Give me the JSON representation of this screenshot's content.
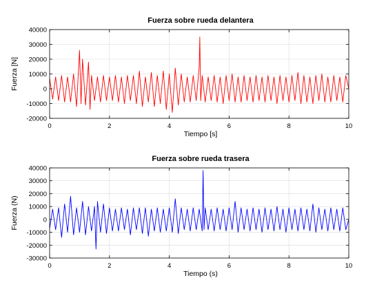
{
  "chart_data": [
    {
      "type": "line",
      "title": "Fuerza sobre rueda delantera",
      "xlabel": "Tiempo [s]",
      "ylabel": "Fuerza [N]",
      "xlim": [
        0,
        10
      ],
      "ylim": [
        -20000,
        40000
      ],
      "x_ticks": [
        0,
        2,
        4,
        6,
        8,
        10
      ],
      "y_ticks": [
        -20000,
        -10000,
        0,
        10000,
        20000,
        30000,
        40000
      ],
      "grid": true,
      "series": [
        {
          "color": "#ff0000",
          "x": [
            0,
            0.1,
            0.2,
            0.3,
            0.4,
            0.5,
            0.6,
            0.7,
            0.8,
            0.9,
            1.0,
            1.05,
            1.1,
            1.2,
            1.3,
            1.35,
            1.4,
            1.5,
            1.6,
            1.7,
            1.8,
            1.9,
            2.0,
            2.1,
            2.2,
            2.3,
            2.4,
            2.5,
            2.6,
            2.7,
            2.8,
            2.9,
            3.0,
            3.1,
            3.2,
            3.3,
            3.4,
            3.5,
            3.6,
            3.7,
            3.8,
            3.9,
            4.0,
            4.1,
            4.2,
            4.3,
            4.4,
            4.5,
            4.6,
            4.7,
            4.8,
            4.9,
            5.0,
            5.02,
            5.05,
            5.1,
            5.2,
            5.3,
            5.4,
            5.5,
            5.6,
            5.7,
            5.8,
            5.9,
            6.0,
            6.1,
            6.2,
            6.3,
            6.4,
            6.5,
            6.6,
            6.7,
            6.8,
            6.9,
            7.0,
            7.1,
            7.2,
            7.3,
            7.4,
            7.5,
            7.6,
            7.7,
            7.8,
            7.9,
            8.0,
            8.1,
            8.2,
            8.3,
            8.4,
            8.5,
            8.6,
            8.7,
            8.8,
            8.9,
            9.0,
            9.1,
            9.2,
            9.3,
            9.4,
            9.5,
            9.6,
            9.7,
            9.8,
            9.9,
            10.0
          ],
          "y": [
            7000,
            -7000,
            8000,
            -8000,
            9000,
            -9000,
            8000,
            -9000,
            10000,
            -12000,
            26000,
            -10000,
            20000,
            -11000,
            18000,
            -14000,
            9000,
            -8000,
            8000,
            -9000,
            9000,
            -8000,
            8000,
            -8000,
            9000,
            -9000,
            8000,
            -10000,
            9000,
            -8000,
            9000,
            -10000,
            12000,
            -12000,
            8000,
            -9000,
            11000,
            -12000,
            9000,
            -10000,
            12000,
            -14000,
            10000,
            -16000,
            14000,
            -11000,
            10000,
            -9000,
            8000,
            -9000,
            9000,
            -8000,
            15000,
            35000,
            -8000,
            9000,
            -9000,
            8000,
            -8000,
            9000,
            -9000,
            8000,
            -10000,
            9000,
            -8000,
            10000,
            -9000,
            8000,
            -9000,
            9000,
            -8000,
            8000,
            -9000,
            9000,
            -8000,
            8000,
            -9000,
            9000,
            -8000,
            8000,
            -10000,
            9000,
            -8000,
            8000,
            -9000,
            9000,
            -8000,
            11000,
            -10000,
            9000,
            -9000,
            8000,
            -10000,
            9000,
            -8000,
            10000,
            -9000,
            8000,
            -9000,
            9000,
            -8000,
            8000,
            -9000,
            9000,
            0
          ]
        }
      ]
    },
    {
      "type": "line",
      "title": "Fuerza sobre rueda trasera",
      "xlabel": "Tiempo (s)",
      "ylabel": "Fuerza (N)",
      "xlim": [
        0,
        10
      ],
      "ylim": [
        -30000,
        40000
      ],
      "x_ticks": [
        0,
        2,
        4,
        6,
        8,
        10
      ],
      "y_ticks": [
        -30000,
        -20000,
        -10000,
        0,
        10000,
        20000,
        30000,
        40000
      ],
      "grid": true,
      "series": [
        {
          "color": "#0000ff",
          "x": [
            0,
            0.1,
            0.2,
            0.3,
            0.4,
            0.5,
            0.6,
            0.7,
            0.8,
            0.9,
            1.0,
            1.1,
            1.2,
            1.3,
            1.4,
            1.5,
            1.55,
            1.6,
            1.7,
            1.8,
            1.9,
            2.0,
            2.1,
            2.2,
            2.3,
            2.4,
            2.5,
            2.6,
            2.7,
            2.8,
            2.9,
            3.0,
            3.1,
            3.2,
            3.3,
            3.4,
            3.5,
            3.6,
            3.7,
            3.8,
            3.9,
            4.0,
            4.1,
            4.2,
            4.3,
            4.4,
            4.5,
            4.6,
            4.7,
            4.8,
            4.9,
            5.0,
            5.1,
            5.13,
            5.16,
            5.2,
            5.3,
            5.4,
            5.5,
            5.6,
            5.7,
            5.8,
            5.9,
            6.0,
            6.1,
            6.2,
            6.3,
            6.4,
            6.5,
            6.6,
            6.7,
            6.8,
            6.9,
            7.0,
            7.1,
            7.2,
            7.3,
            7.4,
            7.5,
            7.6,
            7.7,
            7.8,
            7.9,
            8.0,
            8.1,
            8.2,
            8.3,
            8.4,
            8.5,
            8.6,
            8.7,
            8.8,
            8.9,
            9.0,
            9.1,
            9.2,
            9.3,
            9.4,
            9.5,
            9.6,
            9.7,
            9.8,
            9.9,
            10.0
          ],
          "y": [
            -7000,
            8000,
            -8000,
            9000,
            -14000,
            12000,
            -10000,
            18000,
            -12000,
            9000,
            -10000,
            14000,
            -12000,
            10000,
            -9000,
            10000,
            -23000,
            14000,
            -10000,
            12000,
            -11000,
            9000,
            -9000,
            8000,
            -9000,
            9000,
            -8000,
            8000,
            -12000,
            9000,
            -8000,
            9000,
            -11000,
            9000,
            -13000,
            8000,
            -9000,
            9000,
            -10000,
            8000,
            -9000,
            9000,
            -10000,
            16000,
            -11000,
            9000,
            -8000,
            8000,
            -9000,
            9000,
            -8000,
            8000,
            -9000,
            38000,
            -8000,
            9000,
            -8000,
            8000,
            -9000,
            9000,
            -8000,
            8000,
            -9000,
            9000,
            -8000,
            14000,
            -10000,
            9000,
            -8000,
            8000,
            -9000,
            9000,
            -8000,
            8000,
            -10000,
            9000,
            -8000,
            8000,
            -9000,
            10000,
            -8000,
            8000,
            -10000,
            9000,
            -8000,
            8000,
            -9000,
            9000,
            -8000,
            8000,
            -9000,
            12000,
            -10000,
            9000,
            -8000,
            8000,
            -9000,
            9000,
            -8000,
            8000,
            -9000,
            9000,
            -8000,
            0
          ]
        }
      ]
    }
  ]
}
